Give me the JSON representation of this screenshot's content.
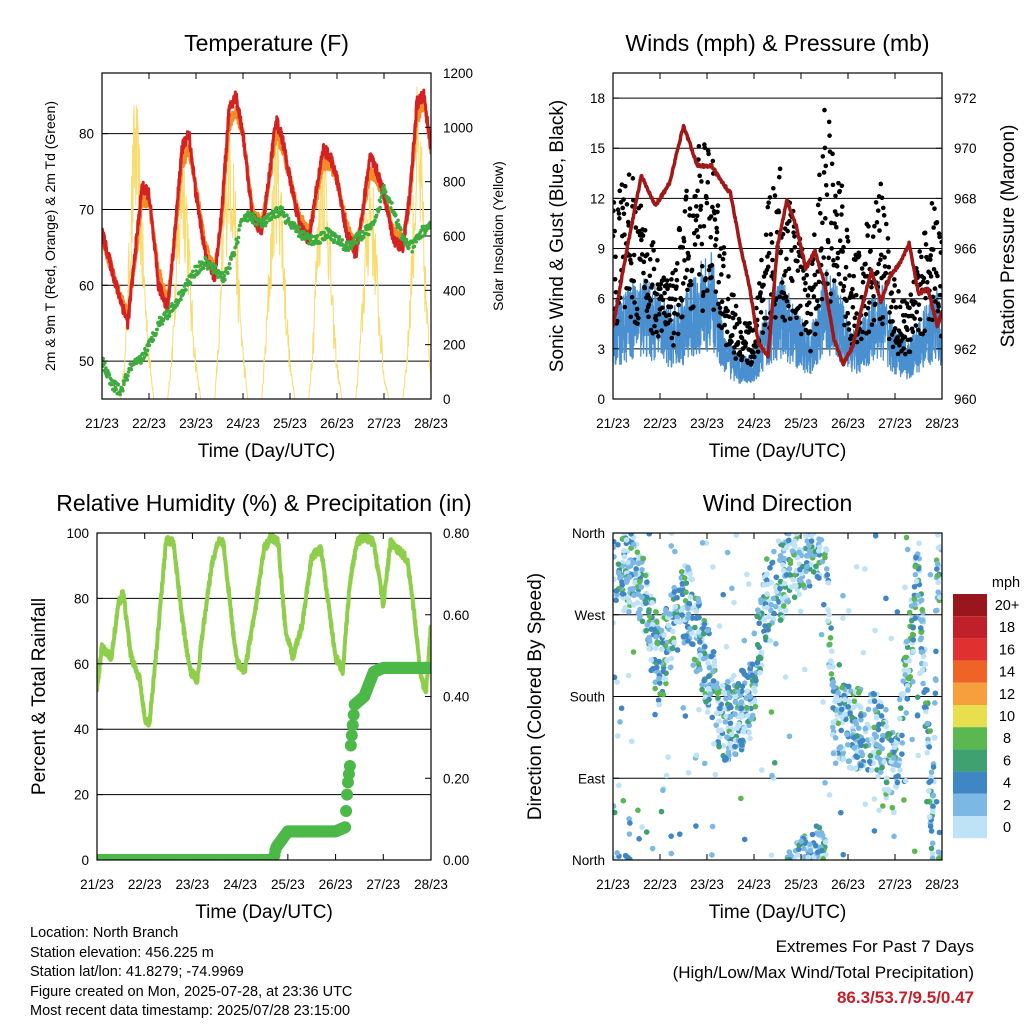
{
  "chart_data": [
    {
      "type": "line",
      "title": "Temperature (F)",
      "xlabel": "Time (Day/UTC)",
      "ylabel": "2m & 9m T (Red, Orange) & 2m Td (Green)",
      "y2label": "Solar Insolation (Yellow)",
      "x_ticks": [
        "21/23",
        "22/23",
        "23/23",
        "24/23",
        "25/23",
        "26/23",
        "27/23",
        "28/23"
      ],
      "ylim": [
        45,
        88
      ],
      "y_ticks": [
        50,
        60,
        70,
        80
      ],
      "y2lim": [
        0,
        1200
      ],
      "y2_ticks": [
        0,
        200,
        400,
        600,
        800,
        1000,
        1200
      ],
      "gridlines": [
        50,
        60,
        70,
        80
      ],
      "colors": {
        "t2m": "#d42121",
        "t9m": "#f28c28",
        "td": "#3dab3d",
        "solar": "#f7dc6f"
      },
      "series": [
        {
          "name": "2m T",
          "axis": "left",
          "x_day": [
            0,
            0.3,
            0.55,
            0.7,
            0.85,
            1.0,
            1.2,
            1.4,
            1.55,
            1.7,
            1.85,
            2.0,
            2.2,
            2.4,
            2.55,
            2.7,
            2.85,
            3.0,
            3.2,
            3.4,
            3.55,
            3.7,
            3.85,
            4.0,
            4.2,
            4.4,
            4.55,
            4.7,
            4.85,
            5.0,
            5.2,
            5.4,
            5.55,
            5.7,
            5.85,
            6.0,
            6.2,
            6.4,
            6.55,
            6.7,
            6.85,
            7.0
          ],
          "y": [
            67,
            60,
            55,
            64,
            73,
            72,
            60,
            57,
            67,
            78,
            80,
            72,
            64,
            61,
            70,
            83,
            85,
            80,
            69,
            67,
            74,
            82,
            79,
            74,
            68,
            66,
            72,
            78,
            77,
            74,
            67,
            64,
            70,
            77,
            75,
            72,
            66,
            65,
            72,
            84,
            85,
            78
          ]
        },
        {
          "name": "9m T",
          "axis": "left",
          "x_day": [
            0,
            0.3,
            0.55,
            0.7,
            0.85,
            1.0,
            1.2,
            1.4,
            1.55,
            1.7,
            1.85,
            2.0,
            2.2,
            2.4,
            2.55,
            2.7,
            2.85,
            3.0,
            3.2,
            3.4,
            3.55,
            3.7,
            3.85,
            4.0,
            4.2,
            4.4,
            4.55,
            4.7,
            4.85,
            5.0,
            5.2,
            5.4,
            5.55,
            5.7,
            5.85,
            6.0,
            6.2,
            6.4,
            6.55,
            6.7,
            6.85,
            7.0
          ],
          "y": [
            66.5,
            60,
            56,
            63,
            71,
            71,
            62,
            58,
            66,
            76,
            78,
            73,
            65,
            62,
            69,
            81,
            83,
            80,
            70,
            68,
            73,
            80,
            78,
            74,
            69,
            67,
            71,
            76,
            76,
            74,
            68,
            65,
            69,
            75,
            74,
            72,
            67,
            66,
            71,
            82,
            84,
            78
          ]
        },
        {
          "name": "2m Td",
          "axis": "left",
          "x_day": [
            0,
            0.2,
            0.4,
            0.6,
            0.8,
            1.0,
            1.2,
            1.5,
            1.8,
            2.0,
            2.2,
            2.4,
            2.6,
            2.8,
            3.0,
            3.2,
            3.4,
            3.6,
            3.8,
            4.0,
            4.2,
            4.4,
            4.6,
            4.8,
            5.0,
            5.2,
            5.4,
            5.6,
            5.8,
            6.0,
            6.2,
            6.4,
            6.6,
            6.8,
            7.0
          ],
          "y": [
            50,
            47,
            46,
            49,
            50,
            52,
            55,
            57,
            60,
            62,
            63,
            62,
            61,
            64,
            69,
            69,
            68,
            69,
            70,
            68,
            67,
            66,
            66,
            67,
            66,
            65,
            66,
            67,
            68,
            73,
            70,
            66,
            65,
            67,
            68
          ]
        },
        {
          "name": "Solar Insolation",
          "axis": "right",
          "x_day": [
            0,
            0.4,
            0.5,
            0.6,
            0.7,
            0.8,
            0.9,
            1.0,
            1.1,
            1.4,
            1.5,
            1.6,
            1.7,
            1.8,
            1.9,
            2.0,
            2.1,
            2.4,
            2.5,
            2.6,
            2.7,
            2.8,
            2.9,
            3.0,
            3.1,
            3.4,
            3.5,
            3.6,
            3.7,
            3.8,
            3.9,
            4.0,
            4.1,
            4.4,
            4.5,
            4.6,
            4.7,
            4.8,
            4.9,
            5.0,
            5.1,
            5.4,
            5.5,
            5.6,
            5.7,
            5.8,
            5.9,
            6.0,
            6.1,
            6.4,
            6.5,
            6.6,
            6.7,
            6.8,
            6.9,
            7.0
          ],
          "y": [
            0,
            0,
            200,
            700,
            1150,
            900,
            500,
            200,
            0,
            0,
            250,
            600,
            1000,
            850,
            400,
            150,
            0,
            0,
            300,
            800,
            1100,
            950,
            500,
            200,
            0,
            0,
            300,
            700,
            1050,
            900,
            450,
            150,
            0,
            0,
            300,
            750,
            1050,
            850,
            400,
            150,
            0,
            0,
            250,
            600,
            900,
            700,
            350,
            100,
            0,
            0,
            200,
            650,
            1100,
            900,
            400,
            100
          ]
        }
      ]
    },
    {
      "type": "scatter",
      "title": "Winds (mph) & Pressure (mb)",
      "xlabel": "Time (Day/UTC)",
      "ylabel": "Sonic Wind & Gust (Blue, Black)",
      "y2label": "Station Pressure (Maroon)",
      "x_ticks": [
        "21/23",
        "22/23",
        "23/23",
        "24/23",
        "25/23",
        "26/23",
        "27/23",
        "28/23"
      ],
      "ylim": [
        0,
        19.5
      ],
      "y_ticks": [
        0,
        3,
        6,
        9,
        12,
        15,
        18
      ],
      "y2lim": [
        960,
        973
      ],
      "y2_ticks": [
        960,
        962,
        964,
        966,
        968,
        970,
        972
      ],
      "gridlines": [
        3,
        6,
        9,
        12,
        15,
        18
      ],
      "colors": {
        "wind": "#4a90d0",
        "gust": "#000000",
        "pressure": "#a01818"
      },
      "series": [
        {
          "name": "Wind",
          "axis": "left",
          "x_day": [
            0,
            0.3,
            0.6,
            0.9,
            1.2,
            1.5,
            1.8,
            2.1,
            2.4,
            2.7,
            3.0,
            3.3,
            3.6,
            3.9,
            4.2,
            4.5,
            4.8,
            5.1,
            5.4,
            5.7,
            6.0,
            6.3,
            6.6,
            6.9,
            7.0
          ],
          "y": [
            4,
            5,
            5.5,
            5,
            4,
            4.5,
            6,
            6.5,
            3,
            2,
            2,
            4.5,
            5.5,
            4,
            3,
            6,
            5,
            3,
            4,
            5.5,
            3,
            2.5,
            4,
            5,
            4
          ]
        },
        {
          "name": "Gust",
          "axis": "left",
          "x_day": [
            0,
            0.3,
            0.6,
            0.9,
            1.2,
            1.5,
            1.8,
            2.1,
            2.4,
            2.7,
            3.0,
            3.3,
            3.6,
            3.9,
            4.2,
            4.5,
            4.8,
            5.1,
            5.4,
            5.7,
            6.0,
            6.3,
            6.6,
            6.9,
            7.0
          ],
          "y": [
            9,
            11,
            9,
            7,
            5,
            9,
            12,
            12,
            6,
            3,
            3,
            9,
            11,
            8,
            5,
            14,
            11,
            6,
            8,
            10,
            5,
            4,
            8,
            10,
            7
          ]
        },
        {
          "name": "Station Pressure",
          "axis": "right",
          "x_day": [
            0,
            0.3,
            0.6,
            0.9,
            1.2,
            1.5,
            1.8,
            2.1,
            2.3,
            2.5,
            2.7,
            2.9,
            3.1,
            3.3,
            3.5,
            3.7,
            3.9,
            4.1,
            4.3,
            4.5,
            4.7,
            4.9,
            5.1,
            5.3,
            5.5,
            5.7,
            5.9,
            6.1,
            6.3,
            6.5,
            6.7,
            6.9,
            7.0
          ],
          "y": [
            962.9,
            966,
            968.9,
            967.7,
            968.6,
            970.9,
            969.3,
            969.3,
            968.7,
            968.2,
            966.2,
            964.5,
            962.2,
            961.7,
            966.1,
            967.9,
            966.9,
            965.2,
            965.9,
            964.6,
            962.4,
            961.4,
            962.1,
            963.7,
            965.1,
            963.9,
            964.9,
            965.4,
            966.2,
            964.2,
            964.4,
            962.9,
            963.5
          ]
        }
      ]
    },
    {
      "type": "line",
      "title": "Relative Humidity (%) & Precipitation (in)",
      "xlabel": "Time (Day/UTC)",
      "ylabel": "Percent & Total Rainfall",
      "x_ticks": [
        "21/23",
        "22/23",
        "23/23",
        "24/23",
        "25/23",
        "26/23",
        "27/23",
        "28/23"
      ],
      "ylim": [
        0,
        100
      ],
      "y_ticks": [
        0,
        20,
        40,
        60,
        80,
        100
      ],
      "y2lim": [
        0,
        0.8
      ],
      "y2_ticks": [
        "0.00",
        "0.20",
        "0.40",
        "0.60",
        "0.80"
      ],
      "gridlines": [
        20,
        40,
        60,
        80,
        100
      ],
      "colors": {
        "rh": "#8fce4a",
        "precip": "#4cb848"
      },
      "series": [
        {
          "name": "Relative Humidity",
          "axis": "left",
          "x_day": [
            0,
            0.1,
            0.3,
            0.45,
            0.55,
            0.7,
            0.9,
            1.0,
            1.1,
            1.25,
            1.45,
            1.6,
            1.8,
            1.95,
            2.1,
            2.2,
            2.4,
            2.55,
            2.65,
            2.85,
            2.95,
            3.1,
            3.3,
            3.5,
            3.65,
            3.8,
            3.95,
            4.1,
            4.3,
            4.5,
            4.7,
            4.85,
            5.0,
            5.15,
            5.3,
            5.45,
            5.6,
            5.8,
            6.0,
            6.15,
            6.3,
            6.5,
            6.65,
            6.8,
            6.9,
            7.0
          ],
          "y": [
            52,
            65,
            62,
            78,
            82,
            63,
            55,
            43,
            42,
            65,
            98,
            97,
            72,
            58,
            55,
            68,
            90,
            98,
            97,
            70,
            60,
            58,
            75,
            95,
            99,
            97,
            70,
            62,
            72,
            93,
            95,
            78,
            62,
            58,
            85,
            97,
            99,
            97,
            78,
            97,
            95,
            92,
            75,
            55,
            52,
            72
          ]
        },
        {
          "name": "Total Rainfall",
          "axis": "right",
          "x_day": [
            0,
            1.0,
            2.0,
            3.0,
            3.7,
            3.75,
            4.0,
            4.5,
            5.0,
            5.2,
            5.25,
            5.3,
            5.32,
            5.4,
            5.5,
            5.6,
            5.7,
            5.8,
            6.0,
            6.5,
            7.0
          ],
          "y": [
            0,
            0,
            0,
            0,
            0,
            0.03,
            0.07,
            0.07,
            0.07,
            0.08,
            0.18,
            0.23,
            0.28,
            0.38,
            0.39,
            0.4,
            0.43,
            0.46,
            0.47,
            0.47,
            0.47
          ]
        }
      ]
    },
    {
      "type": "scatter",
      "title": "Wind Direction",
      "xlabel": "Time (Day/UTC)",
      "ylabel": "Direction (Colored By Speed)",
      "x_ticks": [
        "21/23",
        "22/23",
        "23/23",
        "24/23",
        "25/23",
        "26/23",
        "27/23",
        "28/23"
      ],
      "y_ticks": [
        "North",
        "East",
        "South",
        "West",
        "North"
      ],
      "ylim": [
        0,
        360
      ],
      "gridlines": [
        90,
        180,
        270
      ],
      "colorbar": {
        "title": "mph",
        "labels": [
          "20+",
          "18",
          "16",
          "14",
          "12",
          "10",
          "8",
          "6",
          "4",
          "2",
          "0"
        ],
        "colors": [
          "#99161d",
          "#c0202a",
          "#e0302f",
          "#ef6327",
          "#f69f3c",
          "#e7df4d",
          "#5bb750",
          "#3fa070",
          "#3f86c4",
          "#7bb8e4",
          "#bfe3f6"
        ]
      },
      "series": [
        {
          "name": "Wind Direction",
          "x_day": [
            0.1,
            0.3,
            0.6,
            1.0,
            1.3,
            1.6,
            2.2,
            2.3,
            2.9,
            3.2,
            3.8,
            4.5,
            4.7,
            5.6,
            6.0,
            6.5,
            6.8,
            6.9
          ],
          "y": [
            330,
            320,
            300,
            210,
            270,
            280,
            180,
            150,
            170,
            270,
            330,
            360,
            150,
            140,
            90,
            320,
            30,
            330
          ]
        }
      ]
    }
  ],
  "info": {
    "location": "Location: North Branch",
    "elevation": "Station elevation: 456.225 m",
    "latlon": "Station lat/lon: 41.8279; -74.9969",
    "created": "Figure created on Mon, 2025-07-28, at 23:36 UTC",
    "timestamp": "Most recent data timestamp: 2025/07/28 23:15:00"
  },
  "extremes": {
    "title": "Extremes For Past 7 Days",
    "subtitle": "(High/Low/Max Wind/Total Precipitation)",
    "values": "86.3/53.7/9.5/0.47"
  }
}
